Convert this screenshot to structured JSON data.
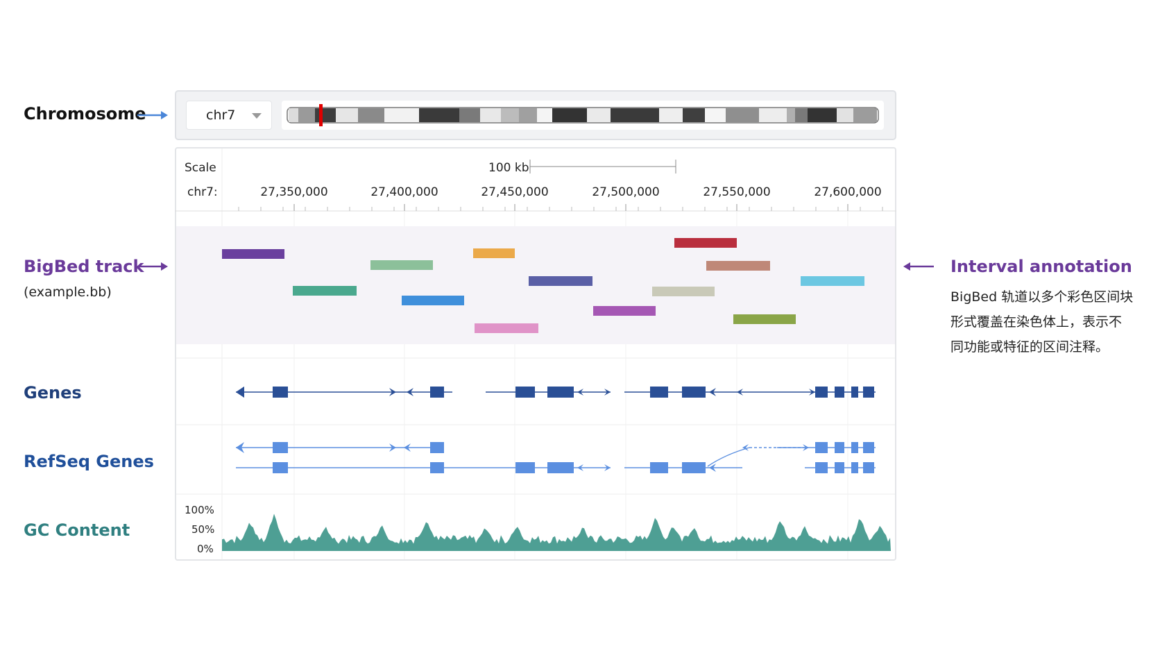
{
  "left_labels": {
    "chromosome": "Chromosome",
    "bigbed_track": "BigBed track",
    "bigbed_file": "(example.bb)",
    "genes": "Genes",
    "refseq_genes": "RefSeq Genes",
    "gc_content": "GC Content"
  },
  "right_annotation": {
    "title": "Interval annotation",
    "lines": [
      "BigBed 轨道以多个彩色区间块",
      "形式覆盖在染色体上，表示不",
      "同功能或特征的区间注释。"
    ]
  },
  "chrom_selector": {
    "value": "chr7"
  },
  "scale": {
    "label": "Scale",
    "bar_label": "100 kb",
    "chrom_label": "chr7:",
    "ticks": [
      "27,350,000",
      "27,400,000",
      "27,450,000",
      "27,500,000",
      "27,550,000",
      "27,600,000"
    ]
  },
  "gc_axis": {
    "ticks": [
      "100%",
      "50%",
      "0%"
    ]
  },
  "colors": {
    "chromosome_label": "#111111",
    "chromosome_arrow": "#4a86d8",
    "bigbed_label": "#6a3a9a",
    "interval_title": "#6a3a9a",
    "genes_label": "#1f3f7a",
    "refseq_label": "#1f4f9a",
    "gc_label": "#2f7f80",
    "genes_track": "#2a4f96",
    "refseq_track": "#5b8fe0",
    "gc_fill": "#4e9f94",
    "ideogram_marker": "#e00000"
  },
  "bigbed_blocks": [
    {
      "color": "#6a3f9e"
    },
    {
      "color": "#4aa88e"
    },
    {
      "color": "#8cc09a"
    },
    {
      "color": "#3f8fdb"
    },
    {
      "color": "#eba94a"
    },
    {
      "color": "#e093c8"
    },
    {
      "color": "#5a5fa6"
    },
    {
      "color": "#a557b4"
    },
    {
      "color": "#b92e3e"
    },
    {
      "color": "#c9c9b8"
    },
    {
      "color": "#bf8878"
    },
    {
      "color": "#8aa548"
    },
    {
      "color": "#6cc7e2"
    }
  ]
}
